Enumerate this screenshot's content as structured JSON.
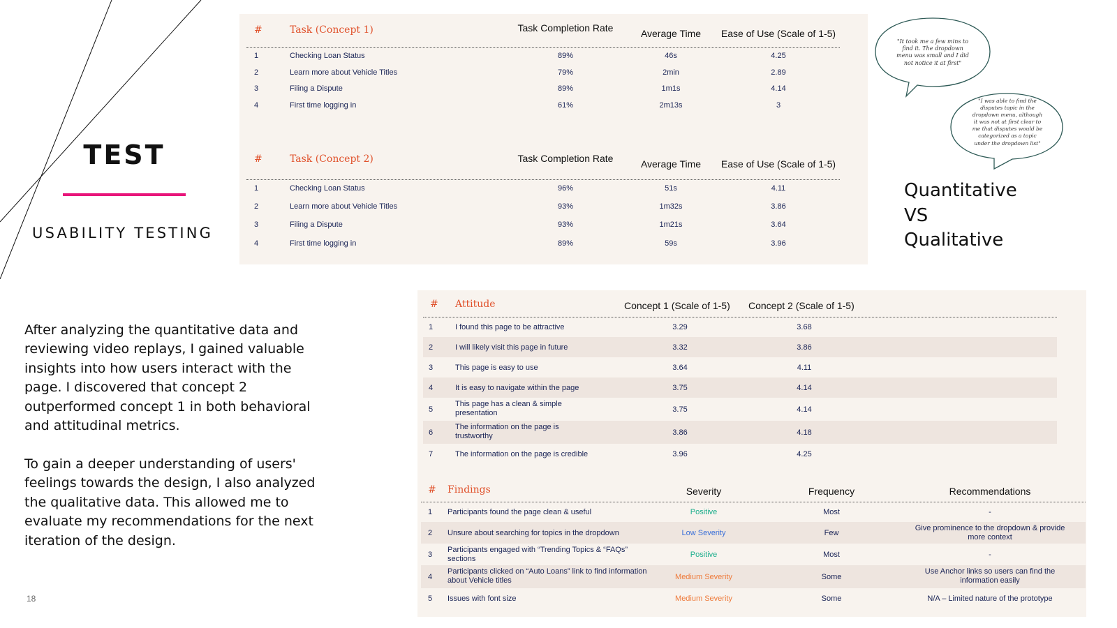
{
  "slide": {
    "title": "TEST",
    "subtitle": "USABILITY TESTING",
    "paragraph1": "After analyzing the quantitative data and reviewing video replays, I gained valuable insights into how users interact with the page. I discovered that concept 2 outperformed concept 1 in both behavioral and attitudinal metrics.",
    "paragraph2": "To gain a deeper understanding of users' feelings towards the design, I also analyzed the qualitative data. This allowed me to evaluate my recommendations for the next iteration of the design.",
    "page_number": "18"
  },
  "qualitative": {
    "title_lines": [
      "Quantitative",
      "VS",
      "Qualitative"
    ],
    "quote1": "\"It took me a few mins to find it. The dropdown menu was small and I did not notice it at first\"",
    "quote2": "\"I was able to find the disputes topic in the dropdown menu, although it was not at first clear to me that disputes would be categorized as a topic under the dropdown list\""
  },
  "tasks_concept1": {
    "headers": {
      "num": "#",
      "task": "Task (Concept 1)",
      "completion": "Task Completion Rate",
      "time": "Average Time",
      "ease": "Ease of Use (Scale of 1-5)"
    },
    "rows": [
      {
        "num": "1",
        "task": "Checking Loan Status",
        "completion": "89%",
        "time": "46s",
        "ease": "4.25"
      },
      {
        "num": "2",
        "task": "Learn more about Vehicle Titles",
        "completion": "79%",
        "time": "2min",
        "ease": "2.89"
      },
      {
        "num": "3",
        "task": "Filing a Dispute",
        "completion": "89%",
        "time": "1m1s",
        "ease": "4.14"
      },
      {
        "num": "4",
        "task": "First time logging in",
        "completion": "61%",
        "time": "2m13s",
        "ease": "3"
      }
    ]
  },
  "tasks_concept2": {
    "headers": {
      "num": "#",
      "task": "Task (Concept 2)",
      "completion": "Task Completion Rate",
      "time": "Average Time",
      "ease": "Ease of Use (Scale of 1-5)"
    },
    "rows": [
      {
        "num": "1",
        "task": "Checking Loan Status",
        "completion": "96%",
        "time": "51s",
        "ease": "4.11"
      },
      {
        "num": "2",
        "task": "Learn more about Vehicle Titles",
        "completion": "93%",
        "time": "1m32s",
        "ease": "3.86"
      },
      {
        "num": "3",
        "task": "Filing a Dispute",
        "completion": "93%",
        "time": "1m21s",
        "ease": "3.64"
      },
      {
        "num": "4",
        "task": "First time logging in",
        "completion": "89%",
        "time": "59s",
        "ease": "3.96"
      }
    ]
  },
  "attitude": {
    "headers": {
      "num": "#",
      "attitude": "Attitude",
      "concept1": "Concept 1 (Scale of 1-5)",
      "concept2": "Concept 2 (Scale of 1-5)"
    },
    "rows": [
      {
        "num": "1",
        "text": "I found this page to be attractive",
        "c1": "3.29",
        "c2": "3.68"
      },
      {
        "num": "2",
        "text": "I will likely visit this page in future",
        "c1": "3.32",
        "c2": "3.86"
      },
      {
        "num": "3",
        "text": "This page is easy to use",
        "c1": "3.64",
        "c2": "4.11"
      },
      {
        "num": "4",
        "text": "It is easy to navigate within the page",
        "c1": "3.75",
        "c2": "4.14"
      },
      {
        "num": "5",
        "text": "This page has a clean & simple presentation",
        "c1": "3.75",
        "c2": "4.14"
      },
      {
        "num": "6",
        "text": "The information on the page is trustworthy",
        "c1": "3.86",
        "c2": "4.18"
      },
      {
        "num": "7",
        "text": "The information on the page is credible",
        "c1": "3.96",
        "c2": "4.25"
      }
    ]
  },
  "findings": {
    "headers": {
      "num": "#",
      "finding": "Findings",
      "severity": "Severity",
      "frequency": "Frequency",
      "recommendation": "Recommendations"
    },
    "rows": [
      {
        "num": "1",
        "finding": "Participants found the page clean & useful",
        "severity": "Positive",
        "severity_color": "#1cae8c",
        "frequency": "Most",
        "recommendation": "-"
      },
      {
        "num": "2",
        "finding": "Unsure about searching for topics in the dropdown",
        "severity": "Low Severity",
        "severity_color": "#3a6fd8",
        "frequency": "Few",
        "recommendation": "Give prominence to the dropdown & provide more context"
      },
      {
        "num": "3",
        "finding": "Participants engaged with “Trending Topics & “FAQs” sections",
        "severity": "Positive",
        "severity_color": "#1cae8c",
        "frequency": "Most",
        "recommendation": "-"
      },
      {
        "num": "4",
        "finding": "Participants clicked on “Auto Loans” link to find information about Vehicle titles",
        "severity": "Medium Severity",
        "severity_color": "#ee7b3c",
        "frequency": "Some",
        "recommendation": "Use Anchor links so users can find the information easily"
      },
      {
        "num": "5",
        "finding": "Issues with font size",
        "severity": "Medium Severity",
        "severity_color": "#ee7b3c",
        "frequency": "Some",
        "recommendation": "N/A – Limited nature of the prototype"
      }
    ]
  }
}
